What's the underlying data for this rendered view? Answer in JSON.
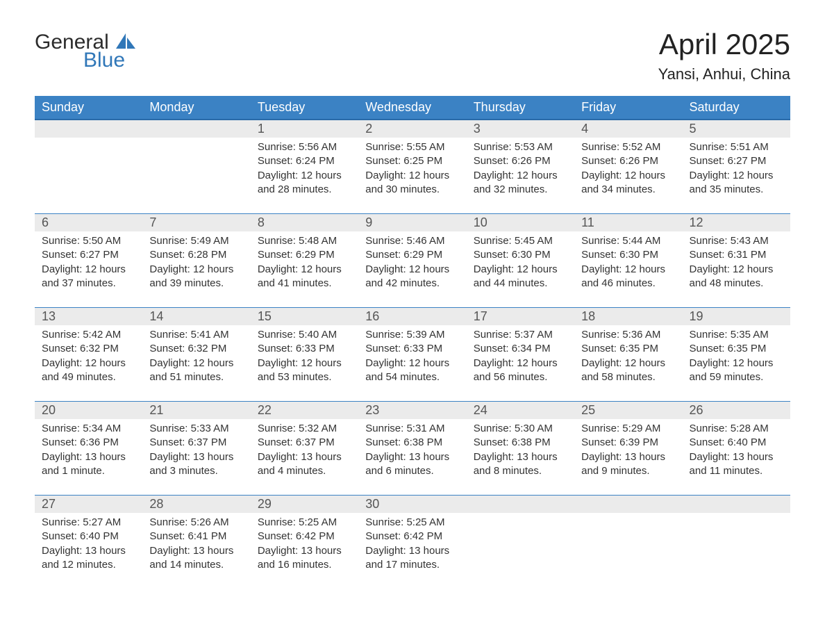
{
  "brand": {
    "line1": "General",
    "line2": "Blue"
  },
  "title": "April 2025",
  "location": "Yansi, Anhui, China",
  "colors": {
    "header_blue": "#3b82c4",
    "header_border": "#2a6aa8",
    "row_grey": "#ebebeb",
    "brand_blue": "#3077b8",
    "text": "#333333",
    "background": "#ffffff"
  },
  "typography": {
    "month_title_fontsize": 42,
    "location_fontsize": 22,
    "dow_fontsize": 18,
    "date_fontsize": 18,
    "info_fontsize": 15
  },
  "days_of_week": [
    "Sunday",
    "Monday",
    "Tuesday",
    "Wednesday",
    "Thursday",
    "Friday",
    "Saturday"
  ],
  "weeks": [
    [
      null,
      null,
      {
        "date": 1,
        "sunrise": "5:56 AM",
        "sunset": "6:24 PM",
        "daylight": "12 hours and 28 minutes."
      },
      {
        "date": 2,
        "sunrise": "5:55 AM",
        "sunset": "6:25 PM",
        "daylight": "12 hours and 30 minutes."
      },
      {
        "date": 3,
        "sunrise": "5:53 AM",
        "sunset": "6:26 PM",
        "daylight": "12 hours and 32 minutes."
      },
      {
        "date": 4,
        "sunrise": "5:52 AM",
        "sunset": "6:26 PM",
        "daylight": "12 hours and 34 minutes."
      },
      {
        "date": 5,
        "sunrise": "5:51 AM",
        "sunset": "6:27 PM",
        "daylight": "12 hours and 35 minutes."
      }
    ],
    [
      {
        "date": 6,
        "sunrise": "5:50 AM",
        "sunset": "6:27 PM",
        "daylight": "12 hours and 37 minutes."
      },
      {
        "date": 7,
        "sunrise": "5:49 AM",
        "sunset": "6:28 PM",
        "daylight": "12 hours and 39 minutes."
      },
      {
        "date": 8,
        "sunrise": "5:48 AM",
        "sunset": "6:29 PM",
        "daylight": "12 hours and 41 minutes."
      },
      {
        "date": 9,
        "sunrise": "5:46 AM",
        "sunset": "6:29 PM",
        "daylight": "12 hours and 42 minutes."
      },
      {
        "date": 10,
        "sunrise": "5:45 AM",
        "sunset": "6:30 PM",
        "daylight": "12 hours and 44 minutes."
      },
      {
        "date": 11,
        "sunrise": "5:44 AM",
        "sunset": "6:30 PM",
        "daylight": "12 hours and 46 minutes."
      },
      {
        "date": 12,
        "sunrise": "5:43 AM",
        "sunset": "6:31 PM",
        "daylight": "12 hours and 48 minutes."
      }
    ],
    [
      {
        "date": 13,
        "sunrise": "5:42 AM",
        "sunset": "6:32 PM",
        "daylight": "12 hours and 49 minutes."
      },
      {
        "date": 14,
        "sunrise": "5:41 AM",
        "sunset": "6:32 PM",
        "daylight": "12 hours and 51 minutes."
      },
      {
        "date": 15,
        "sunrise": "5:40 AM",
        "sunset": "6:33 PM",
        "daylight": "12 hours and 53 minutes."
      },
      {
        "date": 16,
        "sunrise": "5:39 AM",
        "sunset": "6:33 PM",
        "daylight": "12 hours and 54 minutes."
      },
      {
        "date": 17,
        "sunrise": "5:37 AM",
        "sunset": "6:34 PM",
        "daylight": "12 hours and 56 minutes."
      },
      {
        "date": 18,
        "sunrise": "5:36 AM",
        "sunset": "6:35 PM",
        "daylight": "12 hours and 58 minutes."
      },
      {
        "date": 19,
        "sunrise": "5:35 AM",
        "sunset": "6:35 PM",
        "daylight": "12 hours and 59 minutes."
      }
    ],
    [
      {
        "date": 20,
        "sunrise": "5:34 AM",
        "sunset": "6:36 PM",
        "daylight": "13 hours and 1 minute."
      },
      {
        "date": 21,
        "sunrise": "5:33 AM",
        "sunset": "6:37 PM",
        "daylight": "13 hours and 3 minutes."
      },
      {
        "date": 22,
        "sunrise": "5:32 AM",
        "sunset": "6:37 PM",
        "daylight": "13 hours and 4 minutes."
      },
      {
        "date": 23,
        "sunrise": "5:31 AM",
        "sunset": "6:38 PM",
        "daylight": "13 hours and 6 minutes."
      },
      {
        "date": 24,
        "sunrise": "5:30 AM",
        "sunset": "6:38 PM",
        "daylight": "13 hours and 8 minutes."
      },
      {
        "date": 25,
        "sunrise": "5:29 AM",
        "sunset": "6:39 PM",
        "daylight": "13 hours and 9 minutes."
      },
      {
        "date": 26,
        "sunrise": "5:28 AM",
        "sunset": "6:40 PM",
        "daylight": "13 hours and 11 minutes."
      }
    ],
    [
      {
        "date": 27,
        "sunrise": "5:27 AM",
        "sunset": "6:40 PM",
        "daylight": "13 hours and 12 minutes."
      },
      {
        "date": 28,
        "sunrise": "5:26 AM",
        "sunset": "6:41 PM",
        "daylight": "13 hours and 14 minutes."
      },
      {
        "date": 29,
        "sunrise": "5:25 AM",
        "sunset": "6:42 PM",
        "daylight": "13 hours and 16 minutes."
      },
      {
        "date": 30,
        "sunrise": "5:25 AM",
        "sunset": "6:42 PM",
        "daylight": "13 hours and 17 minutes."
      },
      null,
      null,
      null
    ]
  ],
  "labels": {
    "sunrise": "Sunrise:",
    "sunset": "Sunset:",
    "daylight": "Daylight:"
  }
}
